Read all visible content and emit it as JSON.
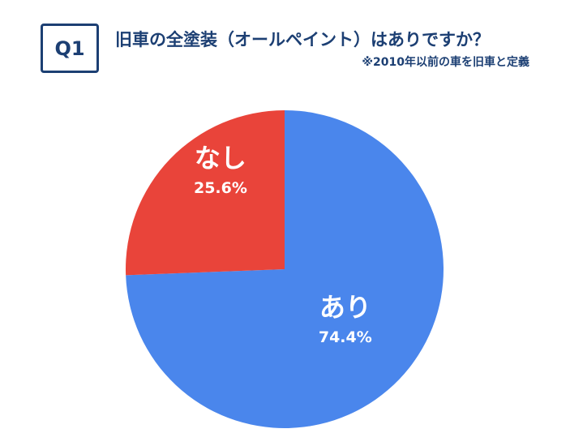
{
  "header": {
    "badge": "Q1",
    "title": "旧車の全塗装（オールペイント）はありですか？",
    "note": "※2010年以前の車を旧車と定義"
  },
  "chart_data": {
    "type": "pie",
    "title": "旧車の全塗装（オールペイント）はありですか？",
    "start_angle_deg": 0,
    "direction": "clockwise",
    "legend": "none",
    "slices": [
      {
        "label": "あり",
        "value": 74.4,
        "value_label": "74.4%",
        "color": "#4a86ec"
      },
      {
        "label": "なし",
        "value": 25.6,
        "value_label": "25.6%",
        "color": "#e9443a"
      }
    ]
  }
}
